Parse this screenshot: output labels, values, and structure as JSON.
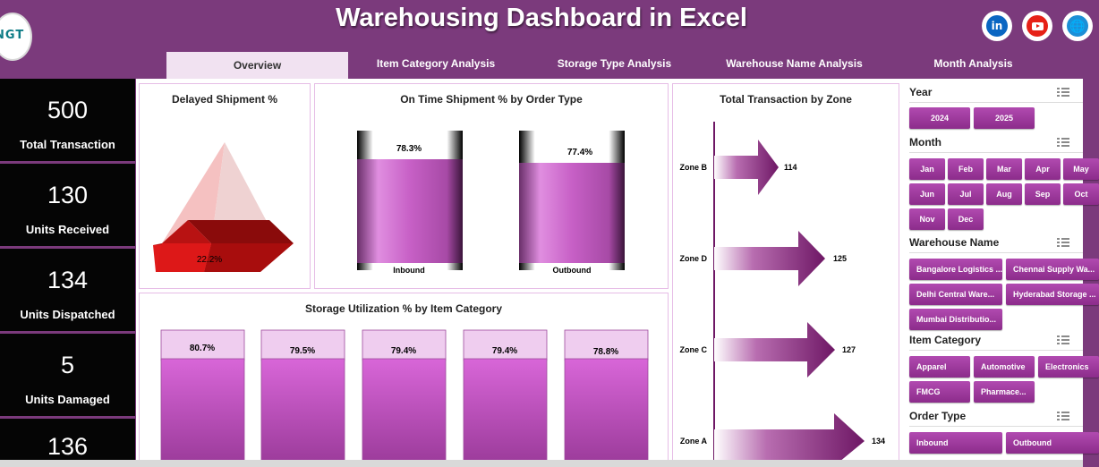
{
  "header": {
    "title": "Warehousing Dashboard in Excel",
    "logo_text": "NGT",
    "social": {
      "linkedin": "in",
      "website": "🌐"
    }
  },
  "tabs": [
    {
      "label": "Overview",
      "active": true
    },
    {
      "label": "Item Category Analysis"
    },
    {
      "label": "Storage Type Analysis"
    },
    {
      "label": "Warehouse Name Analysis"
    },
    {
      "label": "Month Analysis"
    }
  ],
  "kpis": [
    {
      "value": "500",
      "label": "Total Transaction"
    },
    {
      "value": "130",
      "label": "Units Received"
    },
    {
      "value": "134",
      "label": "Units Dispatched"
    },
    {
      "value": "5",
      "label": "Units Damaged"
    },
    {
      "value": "136",
      "label": ""
    }
  ],
  "charts": {
    "delayed": {
      "title": "Delayed Shipment %",
      "label": "22.2%"
    },
    "ontime": {
      "title": "On Time Shipment % by Order Type",
      "labels": [
        "78.3%",
        "77.4%"
      ],
      "cats": [
        "Inbound",
        "Outbound"
      ]
    },
    "zone": {
      "title": "Total Transaction by Zone",
      "cats": [
        "Zone B",
        "Zone D",
        "Zone C",
        "Zone A"
      ],
      "labels": [
        "114",
        "125",
        "127",
        "134"
      ]
    },
    "storage": {
      "title": "Storage Utilization % by Item Category",
      "labels": [
        "80.7%",
        "79.5%",
        "79.4%",
        "79.4%",
        "78.8%"
      ]
    }
  },
  "chart_data": [
    {
      "type": "pie",
      "title": "Delayed Shipment %",
      "values": [
        22.2
      ]
    },
    {
      "type": "bar",
      "title": "On Time Shipment % by Order Type",
      "categories": [
        "Inbound",
        "Outbound"
      ],
      "values": [
        78.3,
        77.4
      ],
      "ylim": [
        0,
        100
      ]
    },
    {
      "type": "bar",
      "title": "Total Transaction by Zone",
      "categories": [
        "Zone B",
        "Zone D",
        "Zone C",
        "Zone A"
      ],
      "values": [
        114,
        125,
        127,
        134
      ]
    },
    {
      "type": "bar",
      "title": "Storage Utilization % by Item Category",
      "values": [
        80.7,
        79.5,
        79.4,
        79.4,
        78.8
      ],
      "ylim": [
        0,
        100
      ]
    }
  ],
  "slicers": {
    "year": {
      "title": "Year",
      "items": [
        "2024",
        "2025"
      ]
    },
    "month": {
      "title": "Month",
      "items": [
        "Jan",
        "Feb",
        "Mar",
        "Apr",
        "May",
        "Jun",
        "Jul",
        "Aug",
        "Sep",
        "Oct",
        "Nov",
        "Dec"
      ]
    },
    "warehouse": {
      "title": "Warehouse Name",
      "items": [
        "Bangalore Logistics ...",
        "Chennai Supply Wa...",
        "Delhi Central Ware...",
        "Hyderabad Storage ...",
        "Mumbai Distributio..."
      ]
    },
    "category": {
      "title": "Item Category",
      "items": [
        "Apparel",
        "Automotive",
        "Electronics",
        "FMCG",
        "Pharmace..."
      ]
    },
    "order": {
      "title": "Order Type",
      "items": [
        "Inbound",
        "Outbound"
      ]
    }
  },
  "colors": {
    "accent": "#7b3a7c",
    "bar": "#c85cc7",
    "arrow": "#7c1f6d",
    "pyramid": "#d21a1a"
  }
}
